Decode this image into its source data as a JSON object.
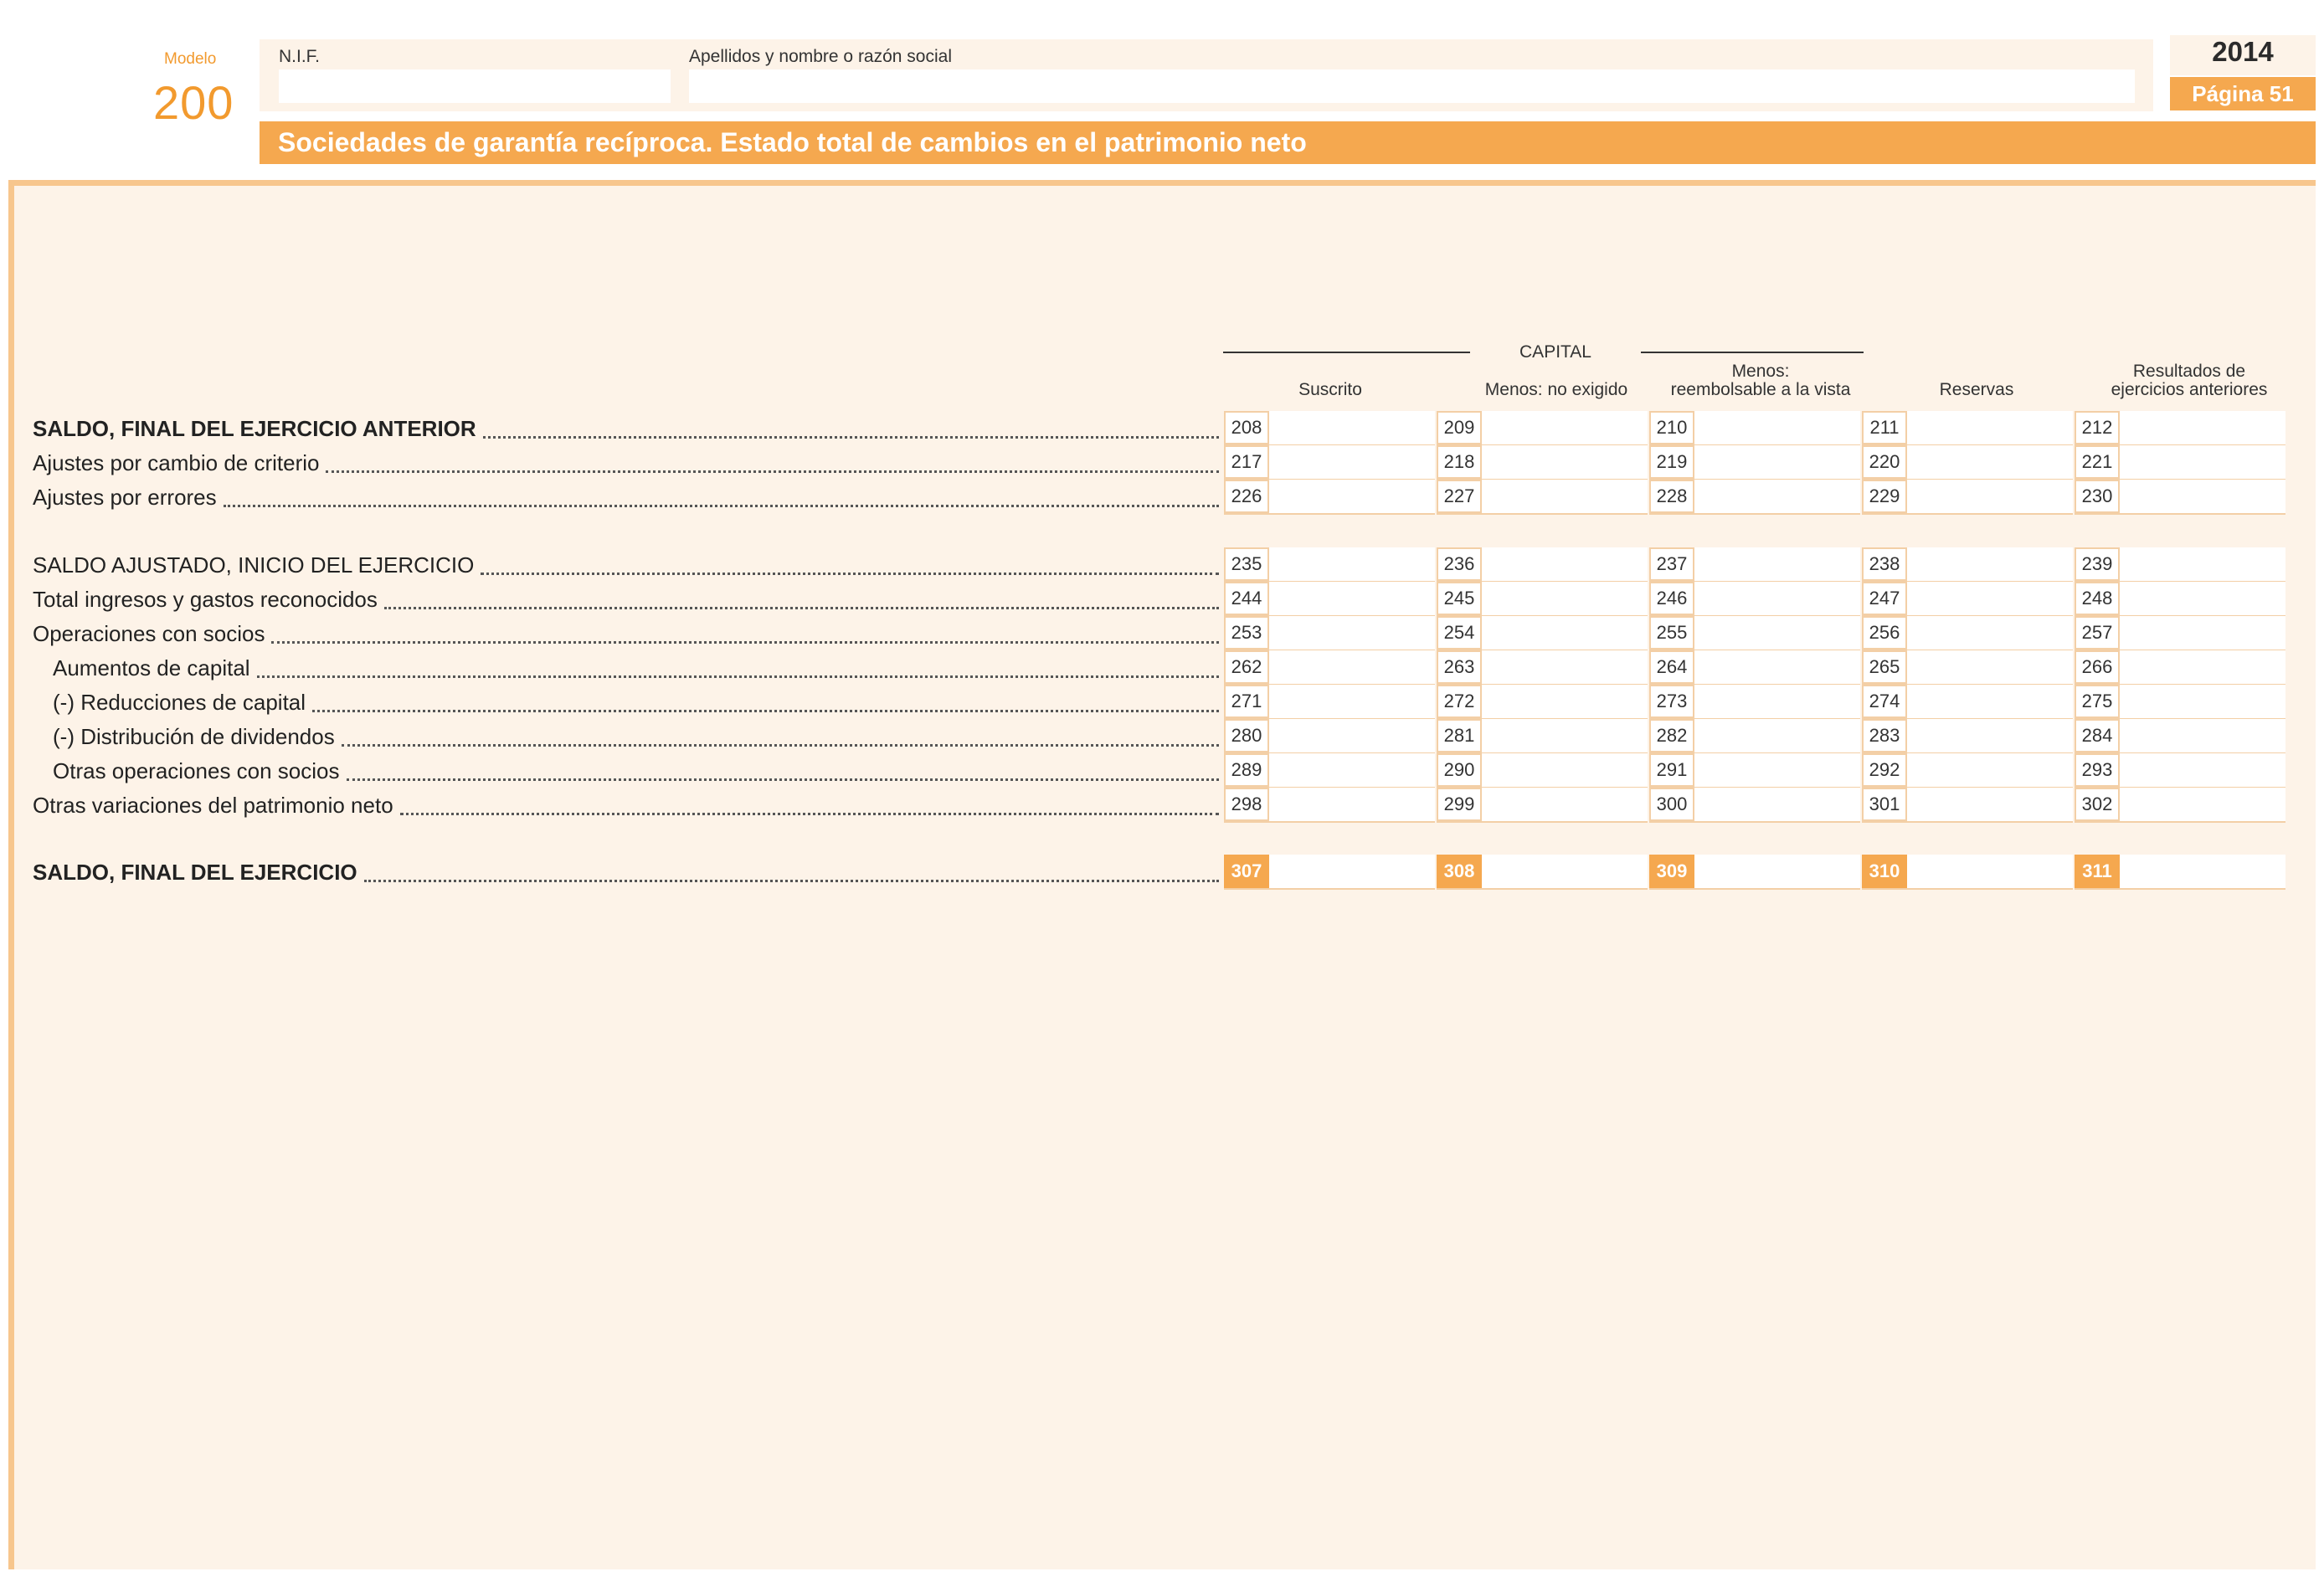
{
  "header": {
    "modelo_label": "Modelo",
    "modelo_number": "200",
    "nif_label": "N.I.F.",
    "name_label": "Apellidos y nombre o razón social",
    "year": "2014",
    "page": "Página 51",
    "title": "Sociedades de garantía recíproca. Estado total de cambios en el patrimonio neto"
  },
  "columns": {
    "group_label": "CAPITAL",
    "suscrito": "Suscrito",
    "no_exigido": "Menos: no exigido",
    "reembolsable_line1": "Menos:",
    "reembolsable_line2": "reembolsable a la vista",
    "reservas": "Reservas",
    "resultados_line1": "Resultados de",
    "resultados_line2": "ejercicios anteriores"
  },
  "rows": [
    {
      "label": "SALDO, FINAL DEL EJERCICIO ANTERIOR",
      "bold": true,
      "codes": [
        "208",
        "209",
        "210",
        "211",
        "212"
      ]
    },
    {
      "label": "Ajustes por cambio de criterio",
      "bold": false,
      "codes": [
        "217",
        "218",
        "219",
        "220",
        "221"
      ]
    },
    {
      "label": "Ajustes por errores",
      "bold": false,
      "codes": [
        "226",
        "227",
        "228",
        "229",
        "230"
      ]
    },
    {
      "label": "SALDO AJUSTADO, INICIO DEL EJERCICIO",
      "bold": false,
      "codes": [
        "235",
        "236",
        "237",
        "238",
        "239"
      ]
    },
    {
      "label": "Total ingresos y gastos reconocidos",
      "bold": false,
      "codes": [
        "244",
        "245",
        "246",
        "247",
        "248"
      ]
    },
    {
      "label": "Operaciones con socios",
      "bold": false,
      "codes": [
        "253",
        "254",
        "255",
        "256",
        "257"
      ]
    },
    {
      "label": "Aumentos de capital",
      "bold": false,
      "codes": [
        "262",
        "263",
        "264",
        "265",
        "266"
      ]
    },
    {
      "label": "(-) Reducciones de capital",
      "bold": false,
      "codes": [
        "271",
        "272",
        "273",
        "274",
        "275"
      ]
    },
    {
      "label": "(-) Distribución de dividendos",
      "bold": false,
      "codes": [
        "280",
        "281",
        "282",
        "283",
        "284"
      ]
    },
    {
      "label": "Otras operaciones con socios",
      "bold": false,
      "codes": [
        "289",
        "290",
        "291",
        "292",
        "293"
      ]
    },
    {
      "label": "Otras variaciones del patrimonio neto",
      "bold": false,
      "codes": [
        "298",
        "299",
        "300",
        "301",
        "302"
      ]
    },
    {
      "label": "SALDO, FINAL DEL EJERCICIO",
      "bold": true,
      "codes": [
        "307",
        "308",
        "309",
        "310",
        "311"
      ]
    }
  ],
  "colors": {
    "accent_orange": "#f5a84f",
    "panel_background": "#fdf3e8",
    "cell_border": "#f3cfa6"
  }
}
